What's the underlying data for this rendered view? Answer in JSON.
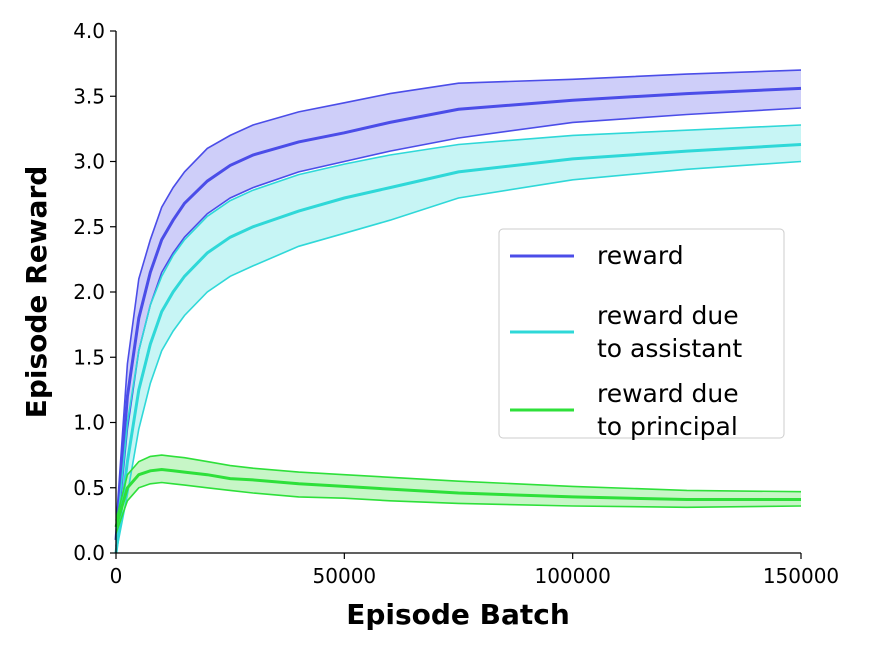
{
  "chart_data": {
    "type": "line",
    "title": "",
    "xlabel": "Episode Batch",
    "ylabel": "Episode Reward",
    "xlim": [
      0,
      150000
    ],
    "ylim": [
      0.0,
      4.0
    ],
    "xticks": [
      0,
      50000,
      100000,
      150000
    ],
    "xtick_labels": [
      "0",
      "50000",
      "100000",
      "150000"
    ],
    "yticks": [
      0.0,
      0.5,
      1.0,
      1.5,
      2.0,
      2.5,
      3.0,
      3.5,
      4.0
    ],
    "ytick_labels": [
      "0.0",
      "0.5",
      "1.0",
      "1.5",
      "2.0",
      "2.5",
      "3.0",
      "3.5",
      "4.0"
    ],
    "grid": false,
    "legend_position": "right",
    "x": [
      0,
      2500,
      5000,
      7500,
      10000,
      12500,
      15000,
      20000,
      25000,
      30000,
      40000,
      50000,
      60000,
      75000,
      100000,
      125000,
      150000
    ],
    "series": [
      {
        "name": "reward",
        "color": "#4b4de8",
        "fill": "#c6c6f8",
        "values": [
          0.1,
          1.2,
          1.8,
          2.15,
          2.4,
          2.55,
          2.68,
          2.85,
          2.97,
          3.05,
          3.15,
          3.22,
          3.3,
          3.4,
          3.47,
          3.52,
          3.56
        ],
        "lower": [
          0.05,
          0.95,
          1.55,
          1.9,
          2.15,
          2.3,
          2.42,
          2.6,
          2.72,
          2.8,
          2.92,
          3.0,
          3.08,
          3.18,
          3.3,
          3.36,
          3.41
        ],
        "upper": [
          0.2,
          1.45,
          2.1,
          2.4,
          2.65,
          2.8,
          2.92,
          3.1,
          3.2,
          3.28,
          3.38,
          3.45,
          3.52,
          3.6,
          3.63,
          3.67,
          3.7
        ]
      },
      {
        "name": "reward due to assistant",
        "color": "#2fd8d8",
        "fill": "#bdf3f3",
        "values": [
          0.0,
          0.7,
          1.25,
          1.6,
          1.85,
          2.0,
          2.12,
          2.3,
          2.42,
          2.5,
          2.62,
          2.72,
          2.8,
          2.92,
          3.02,
          3.08,
          3.13
        ],
        "lower": [
          0.0,
          0.45,
          0.95,
          1.3,
          1.55,
          1.7,
          1.82,
          2.0,
          2.12,
          2.2,
          2.35,
          2.45,
          2.55,
          2.72,
          2.86,
          2.94,
          3.0
        ],
        "upper": [
          0.1,
          1.0,
          1.55,
          1.9,
          2.12,
          2.28,
          2.4,
          2.58,
          2.7,
          2.78,
          2.9,
          2.98,
          3.05,
          3.13,
          3.2,
          3.24,
          3.28
        ]
      },
      {
        "name": "reward due to principal",
        "color": "#2ee03a",
        "fill": "#bdf5bd",
        "values": [
          0.2,
          0.5,
          0.6,
          0.63,
          0.64,
          0.63,
          0.62,
          0.6,
          0.57,
          0.56,
          0.53,
          0.51,
          0.49,
          0.46,
          0.43,
          0.41,
          0.41
        ],
        "lower": [
          0.15,
          0.4,
          0.5,
          0.53,
          0.54,
          0.53,
          0.52,
          0.5,
          0.48,
          0.46,
          0.43,
          0.42,
          0.4,
          0.38,
          0.36,
          0.35,
          0.36
        ],
        "upper": [
          0.25,
          0.6,
          0.7,
          0.74,
          0.75,
          0.74,
          0.73,
          0.7,
          0.67,
          0.65,
          0.62,
          0.6,
          0.58,
          0.55,
          0.51,
          0.48,
          0.47
        ]
      }
    ],
    "legend": [
      {
        "lines": [
          "reward"
        ],
        "series": 0
      },
      {
        "lines": [
          "reward due",
          "to assistant"
        ],
        "series": 1
      },
      {
        "lines": [
          "reward due",
          "to principal"
        ],
        "series": 2
      }
    ]
  }
}
